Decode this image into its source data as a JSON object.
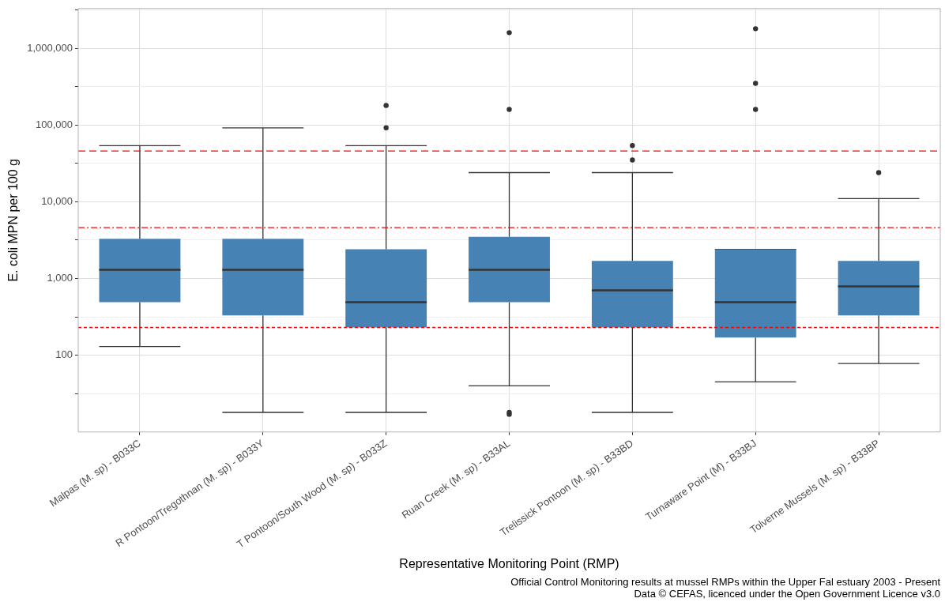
{
  "chart_data": {
    "type": "box",
    "xlabel": "Representative Monitoring Point (RMP)",
    "ylabel": "E. coli MPN per 100 g",
    "categories": [
      "Malpas (M. sp) - B033C",
      "R Pontoon/Tregothnan (M. sp) - B033Y",
      "T Pontoon/South Wood (M. sp) - B033Z",
      "Ruan Creek (M. sp) - B33AL",
      "Trelissick Pontoon (M. sp) - B33BD",
      "Turnaware Point (M) - B33BJ",
      "Tolverne Mussels (M. sp) - B33BP"
    ],
    "color": "#4682b4",
    "boxes": [
      {
        "low": 130,
        "q1": 490,
        "median": 1300,
        "q3": 3300,
        "high": 54000
      },
      {
        "low": 18,
        "q1": 330,
        "median": 1300,
        "q3": 3300,
        "high": 92000
      },
      {
        "low": 18,
        "q1": 230,
        "median": 490,
        "q3": 2400,
        "high": 54000,
        "outliers": [
          92000,
          180000
        ]
      },
      {
        "low": 40,
        "q1": 490,
        "median": 1300,
        "q3": 3500,
        "high": 24000,
        "outliers": [
          18,
          17,
          160000,
          1600000
        ]
      },
      {
        "low": 18,
        "q1": 230,
        "median": 700,
        "q3": 1700,
        "high": 24000,
        "outliers": [
          35000,
          54000
        ]
      },
      {
        "low": 45,
        "q1": 170,
        "median": 490,
        "q3": 2400,
        "high": 2400,
        "outliers": [
          160000,
          350000,
          1800000
        ]
      },
      {
        "low": 78,
        "q1": 330,
        "median": 790,
        "q3": 1700,
        "high": 11000,
        "outliers": [
          24000
        ]
      }
    ],
    "log": true,
    "ylim": [
      10,
      3300000
    ],
    "yticks": [
      {
        "value": 31.6,
        "label": null
      },
      {
        "value": 100,
        "label": "100"
      },
      {
        "value": 316,
        "label": null
      },
      {
        "value": 1000,
        "label": "1,000"
      },
      {
        "value": 3162,
        "label": null
      },
      {
        "value": 10000,
        "label": "10,000"
      },
      {
        "value": 31623,
        "label": null
      },
      {
        "value": 100000,
        "label": "100,000"
      },
      {
        "value": 316228,
        "label": null
      },
      {
        "value": 1000000,
        "label": "1,000,000"
      },
      {
        "value": 3162278,
        "label": null
      }
    ],
    "grid": true,
    "ref_lines": [
      {
        "axis": "y",
        "value": 46000,
        "color": "#ff0000",
        "line_style": "dashed"
      },
      {
        "axis": "y",
        "value": 4600,
        "color": "#ff0000",
        "line_style": "dashdot"
      },
      {
        "axis": "y",
        "value": 230,
        "color": "#ff0000",
        "line_style": "dotted"
      }
    ],
    "annotations": [
      "Official Control Monitoring results at mussel RMPs within the Upper Fal estuary 2003 - Present",
      "Data © CEFAS, licenced under the Open Government Licence v3.0"
    ]
  }
}
